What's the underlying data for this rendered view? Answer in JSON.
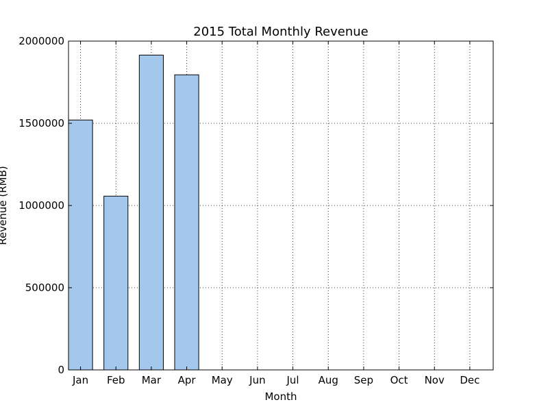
{
  "chart_data": {
    "type": "bar",
    "title": "2015 Total Monthly Revenue",
    "xlabel": "Month",
    "ylabel": "Revenue (RMB)",
    "categories": [
      "Jan",
      "Feb",
      "Mar",
      "Apr",
      "May",
      "Jun",
      "Jul",
      "Aug",
      "Sep",
      "Oct",
      "Nov",
      "Dec"
    ],
    "values": [
      1520000,
      1057000,
      1915000,
      1795000,
      0,
      0,
      0,
      0,
      0,
      0,
      0,
      0
    ],
    "ylim": [
      0,
      2000000
    ],
    "yticks": [
      0,
      500000,
      1000000,
      1500000,
      2000000
    ],
    "ytick_labels": [
      "0",
      "500000",
      "1000000",
      "1500000",
      "2000000"
    ],
    "grid": true,
    "bar_color": "#a4c8ec",
    "edge_color": "#000000"
  }
}
